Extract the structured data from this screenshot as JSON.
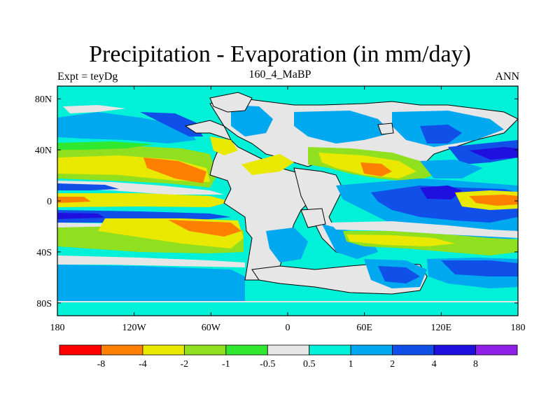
{
  "title": "Precipitation - Evaporation (in mm/day)",
  "subtitle_left": "Expt = teyDg",
  "subtitle_center": "160_4_MaBP",
  "subtitle_right": "ANN",
  "x_ticks": [
    "180",
    "120W",
    "60W",
    "0",
    "60E",
    "120E",
    "180"
  ],
  "y_ticks": [
    "80N",
    "40N",
    "0",
    "40S",
    "80S"
  ],
  "legend": {
    "colors": [
      "#ff0000",
      "#ff8000",
      "#e8e800",
      "#90e020",
      "#30e830",
      "#e6e6e6",
      "#00f0d8",
      "#00a8f0",
      "#1050e8",
      "#2010e0",
      "#9020e8"
    ],
    "labels": [
      "-8",
      "-4",
      "-2",
      "-1",
      "-0.5",
      "0.5",
      "1",
      "2",
      "4",
      "8"
    ]
  },
  "colors": {
    "land": "#e6e6e6",
    "ocean_base": "#00f0d8",
    "coast": "#000000"
  }
}
